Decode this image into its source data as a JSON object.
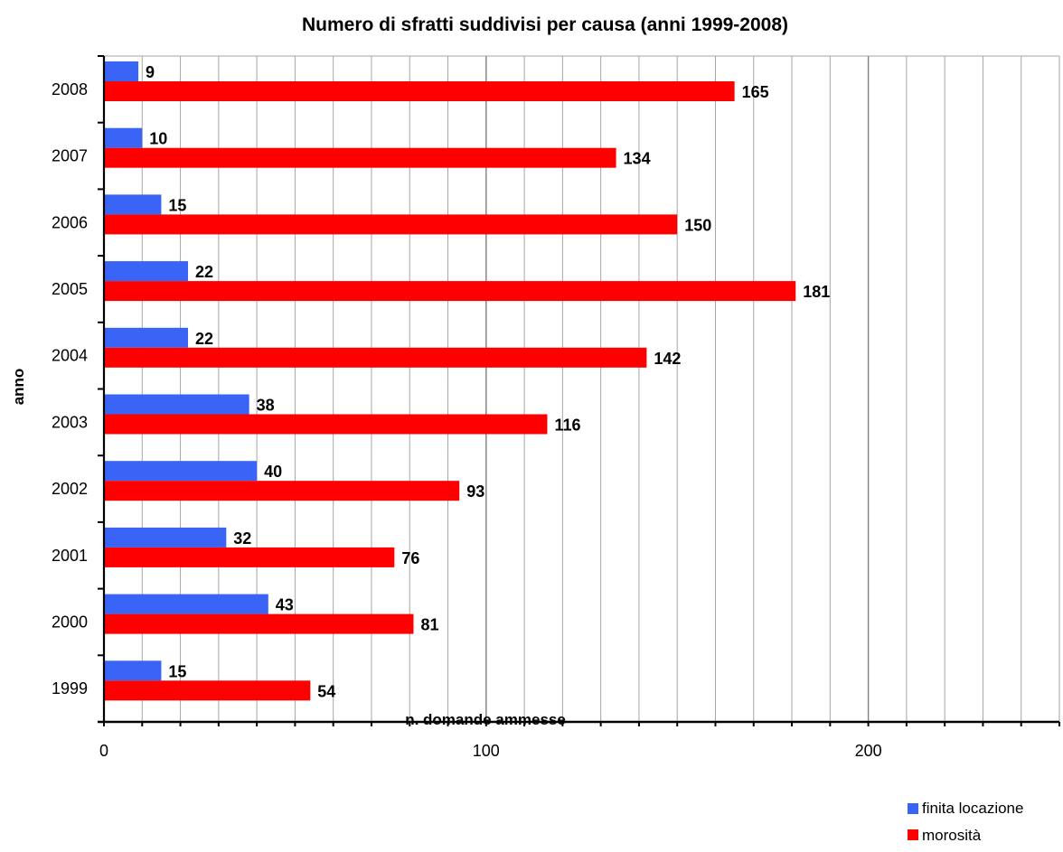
{
  "chart_data": {
    "type": "bar",
    "orientation": "horizontal",
    "title": "Numero di sfratti suddivisi per causa (anni 1999-2008)",
    "xlabel": "n. domande ammesse",
    "ylabel": "anno",
    "categories": [
      "1999",
      "2000",
      "2001",
      "2002",
      "2003",
      "2004",
      "2005",
      "2006",
      "2007",
      "2008"
    ],
    "xlim": [
      0,
      250
    ],
    "x_ticks": [
      0,
      100,
      200
    ],
    "minor_grid_step": 10,
    "grid": true,
    "legend_position": "bottom-right",
    "series": [
      {
        "name": "finita locazione",
        "color": "#3a64f5",
        "values": [
          15,
          43,
          32,
          40,
          38,
          22,
          22,
          15,
          10,
          9
        ]
      },
      {
        "name": "morosità",
        "color": "#ff0000",
        "values": [
          54,
          81,
          76,
          93,
          116,
          142,
          181,
          150,
          134,
          165
        ]
      }
    ]
  }
}
